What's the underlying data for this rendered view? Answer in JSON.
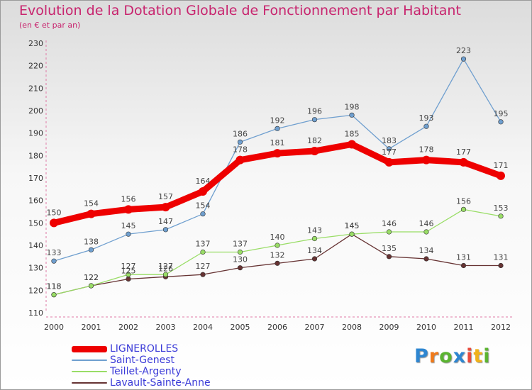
{
  "title": "Evolution de la Dotation Globale de Fonctionnement par Habitant",
  "subtitle": "(en € et par an)",
  "chart_data": {
    "type": "line",
    "x": [
      "2000",
      "2001",
      "2002",
      "2003",
      "2004",
      "2005",
      "2006",
      "2007",
      "2008",
      "2009",
      "2010",
      "2011",
      "2012"
    ],
    "ylim": [
      110,
      230
    ],
    "yticks": [
      110,
      120,
      130,
      140,
      150,
      160,
      170,
      180,
      190,
      200,
      210,
      220,
      230
    ],
    "grid": false,
    "legend_position": "bottom-left",
    "series": [
      {
        "name": "LIGNEROLLES",
        "color": "#ee0000",
        "values": [
          150,
          154,
          156,
          157,
          164,
          178,
          181,
          182,
          185,
          177,
          178,
          177,
          171
        ]
      },
      {
        "name": "Saint-Genest",
        "color": "#6f9fcf",
        "values": [
          133,
          138,
          145,
          147,
          154,
          186,
          192,
          196,
          198,
          183,
          193,
          223,
          195
        ]
      },
      {
        "name": "Teillet-Argenty",
        "color": "#99dd66",
        "values": [
          118,
          122,
          127,
          127,
          137,
          137,
          140,
          143,
          145,
          146,
          146,
          156,
          153
        ]
      },
      {
        "name": "Lavault-Sainte-Anne",
        "color": "#663333",
        "values": [
          118,
          122,
          125,
          126,
          127,
          130,
          132,
          134,
          145,
          135,
          134,
          131,
          131
        ]
      }
    ]
  },
  "logo": {
    "letters": [
      "P",
      "r",
      "o",
      "x",
      "i",
      "t",
      "i"
    ],
    "colors": [
      "#2e86d1",
      "#f07a1a",
      "#5bb431",
      "#2e86d1",
      "#e84a3c",
      "#f0b21a",
      "#5bb431"
    ]
  }
}
